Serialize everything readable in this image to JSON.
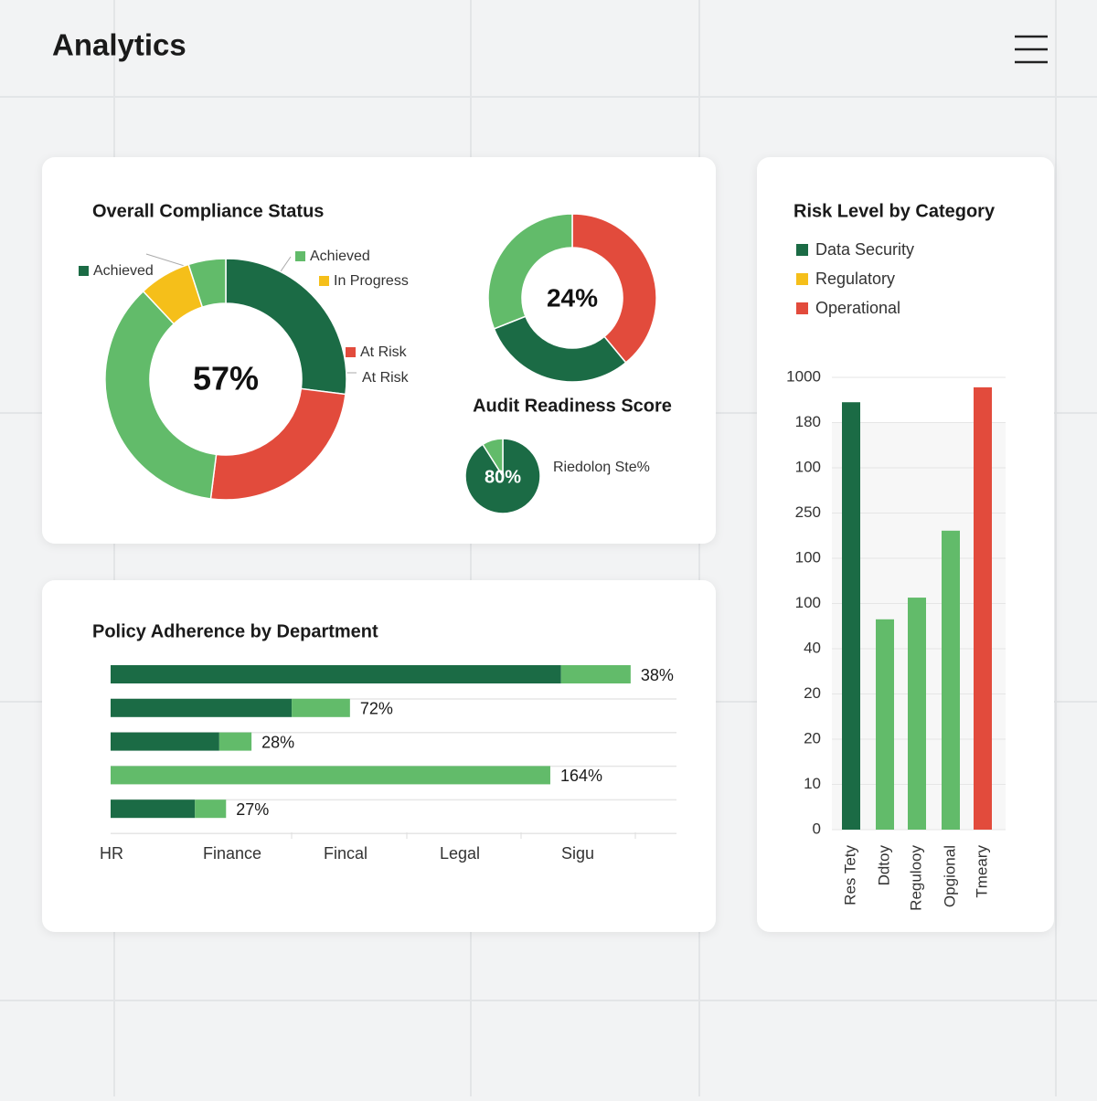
{
  "header": {
    "title": "Analytics"
  },
  "chart_data": [
    {
      "type": "donut",
      "title": "Overall Compliance Status",
      "center_label": "57%",
      "categories": [
        "Achieved",
        "At Risk",
        "Achieved",
        "In Progress",
        null
      ],
      "values": [
        27,
        25,
        36,
        7,
        5
      ],
      "colors": [
        "#1b6b45",
        "#e24b3c",
        "#62bb6a",
        "#f5bf1a",
        "#62bb6a"
      ],
      "annotation": "At Risk"
    },
    {
      "type": "donut",
      "title": "Audit Readiness Score",
      "center_label": "24%",
      "values": [
        39,
        30,
        31
      ],
      "colors": [
        "#e24b3c",
        "#1b6b45",
        "#62bb6a"
      ]
    },
    {
      "type": "pie",
      "label": "Riedoloŋ Ste%",
      "center_label": "80%",
      "values": [
        91,
        9
      ],
      "colors": [
        "#1b6b45",
        "#62bb6a"
      ]
    },
    {
      "type": "hbar",
      "title": "Policy Adherence by Department",
      "xlim": [
        0,
        100
      ],
      "x_labels": [
        "HR",
        "Finance",
        "Fincal",
        "Legal",
        "Sigu"
      ],
      "series": [
        {
          "color": "#1b6b45",
          "values": [
            79.6,
            32,
            19.2,
            0,
            14.9
          ]
        },
        {
          "color": "#62bb6a",
          "values": [
            12.3,
            10.3,
            5.7,
            77.7,
            5.5
          ]
        }
      ],
      "bar_labels": [
        "38%",
        "72%",
        "28%",
        "164%",
        "27%"
      ],
      "grid": true
    },
    {
      "type": "bar",
      "title": "Risk Level by Category",
      "legend": [
        {
          "name": "Data Security",
          "color": "#1b6b45"
        },
        {
          "name": "Regulatory",
          "color": "#f5bf1a"
        },
        {
          "name": "Operational",
          "color": "#e24b3c"
        }
      ],
      "categories": [
        "Res Tety",
        "Ddtoy",
        "Regulooy",
        "Opgional",
        "Tmeary"
      ],
      "values": [
        9.45,
        4.65,
        5.13,
        6.61,
        9.78
      ],
      "colors": [
        "#1b6b45",
        "#62bb6a",
        "#62bb6a",
        "#62bb6a",
        "#e24b3c"
      ],
      "ylim": [
        0,
        10
      ],
      "yticks": [
        0,
        {
          "value": 1,
          "label": "10"
        },
        {
          "value": 2,
          "label": "20"
        },
        {
          "value": 3,
          "label": "20"
        },
        {
          "value": 4,
          "label": "40"
        },
        {
          "value": 5,
          "label": "100"
        },
        {
          "value": 6,
          "label": "100"
        },
        {
          "value": 7,
          "label": "250"
        },
        {
          "value": 8,
          "label": "100"
        },
        {
          "value": 9,
          "label": "180"
        },
        {
          "value": 10,
          "label": "1000"
        }
      ],
      "grid": true
    }
  ]
}
